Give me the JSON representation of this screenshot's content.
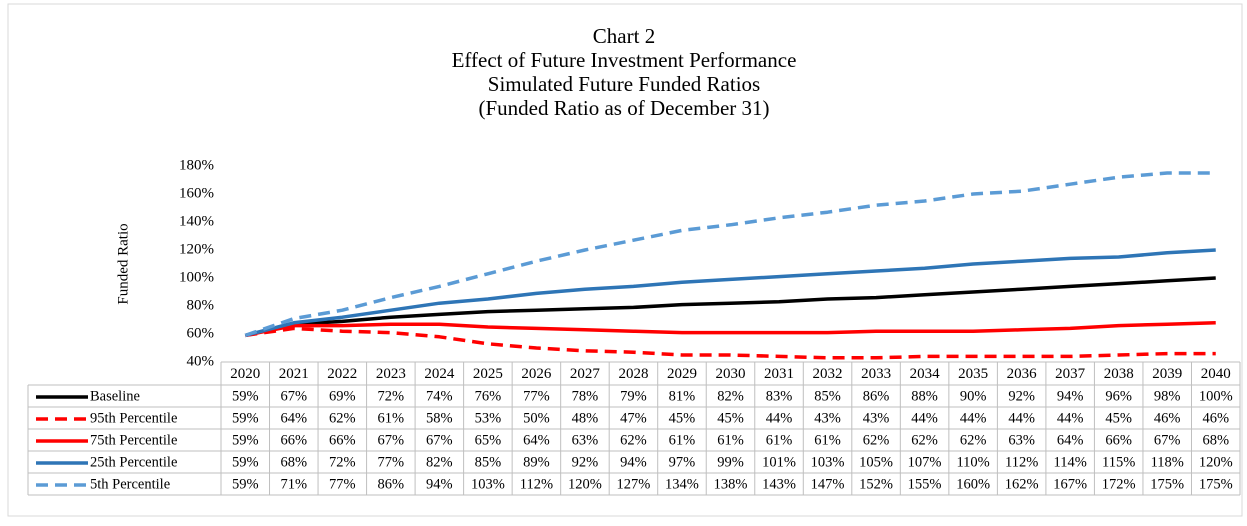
{
  "chart_data": {
    "type": "line",
    "title": [
      "Chart 2",
      "Effect of Future Investment Performance",
      "Simulated Future Funded Ratios",
      "(Funded Ratio as of December 31)"
    ],
    "y_label": "Funded Ratio",
    "categories": [
      "2020",
      "2021",
      "2022",
      "2023",
      "2024",
      "2025",
      "2026",
      "2027",
      "2028",
      "2029",
      "2030",
      "2031",
      "2032",
      "2033",
      "2034",
      "2035",
      "2036",
      "2037",
      "2038",
      "2039",
      "2040"
    ],
    "ylim": [
      40,
      180
    ],
    "yticks": [
      {
        "value": 40,
        "label": "40%"
      },
      {
        "value": 60,
        "label": "60%"
      },
      {
        "value": 80,
        "label": "80%"
      },
      {
        "value": 100,
        "label": "100%"
      },
      {
        "value": 120,
        "label": "120%"
      },
      {
        "value": 140,
        "label": "140%"
      },
      {
        "value": 160,
        "label": "160%"
      },
      {
        "value": 180,
        "label": "180%"
      }
    ],
    "grid": false,
    "series": [
      {
        "name": "Baseline",
        "color": "#000000",
        "dashed": false,
        "values": [
          59,
          67,
          69,
          72,
          74,
          76,
          77,
          78,
          79,
          81,
          82,
          83,
          85,
          86,
          88,
          90,
          92,
          94,
          96,
          98,
          100
        ],
        "value_labels": [
          "59%",
          "67%",
          "69%",
          "72%",
          "74%",
          "76%",
          "77%",
          "78%",
          "79%",
          "81%",
          "82%",
          "83%",
          "85%",
          "86%",
          "88%",
          "90%",
          "92%",
          "94%",
          "96%",
          "98%",
          "100%"
        ]
      },
      {
        "name": "95th Percentile",
        "color": "#ff0000",
        "dashed": true,
        "values": [
          59,
          64,
          62,
          61,
          58,
          53,
          50,
          48,
          47,
          45,
          45,
          44,
          43,
          43,
          44,
          44,
          44,
          44,
          45,
          46,
          46
        ],
        "value_labels": [
          "59%",
          "64%",
          "62%",
          "61%",
          "58%",
          "53%",
          "50%",
          "48%",
          "47%",
          "45%",
          "45%",
          "44%",
          "43%",
          "43%",
          "44%",
          "44%",
          "44%",
          "44%",
          "45%",
          "46%",
          "46%"
        ]
      },
      {
        "name": "75th Percentile",
        "color": "#ff0000",
        "dashed": false,
        "values": [
          59,
          66,
          66,
          67,
          67,
          65,
          64,
          63,
          62,
          61,
          61,
          61,
          61,
          62,
          62,
          62,
          63,
          64,
          66,
          67,
          68
        ],
        "value_labels": [
          "59%",
          "66%",
          "66%",
          "67%",
          "67%",
          "65%",
          "64%",
          "63%",
          "62%",
          "61%",
          "61%",
          "61%",
          "61%",
          "62%",
          "62%",
          "62%",
          "63%",
          "64%",
          "66%",
          "67%",
          "68%"
        ]
      },
      {
        "name": "25th Percentile",
        "color": "#2e75b6",
        "dashed": false,
        "values": [
          59,
          68,
          72,
          77,
          82,
          85,
          89,
          92,
          94,
          97,
          99,
          101,
          103,
          105,
          107,
          110,
          112,
          114,
          115,
          118,
          120
        ],
        "value_labels": [
          "59%",
          "68%",
          "72%",
          "77%",
          "82%",
          "85%",
          "89%",
          "92%",
          "94%",
          "97%",
          "99%",
          "101%",
          "103%",
          "105%",
          "107%",
          "110%",
          "112%",
          "114%",
          "115%",
          "118%",
          "120%"
        ]
      },
      {
        "name": "5th Percentile",
        "color": "#5b9bd5",
        "dashed": true,
        "values": [
          59,
          71,
          77,
          86,
          94,
          103,
          112,
          120,
          127,
          134,
          138,
          143,
          147,
          152,
          155,
          160,
          162,
          167,
          172,
          175,
          175
        ],
        "value_labels": [
          "59%",
          "71%",
          "77%",
          "86%",
          "94%",
          "103%",
          "112%",
          "120%",
          "127%",
          "134%",
          "138%",
          "143%",
          "147%",
          "152%",
          "155%",
          "160%",
          "162%",
          "167%",
          "172%",
          "175%",
          "175%"
        ]
      }
    ]
  }
}
